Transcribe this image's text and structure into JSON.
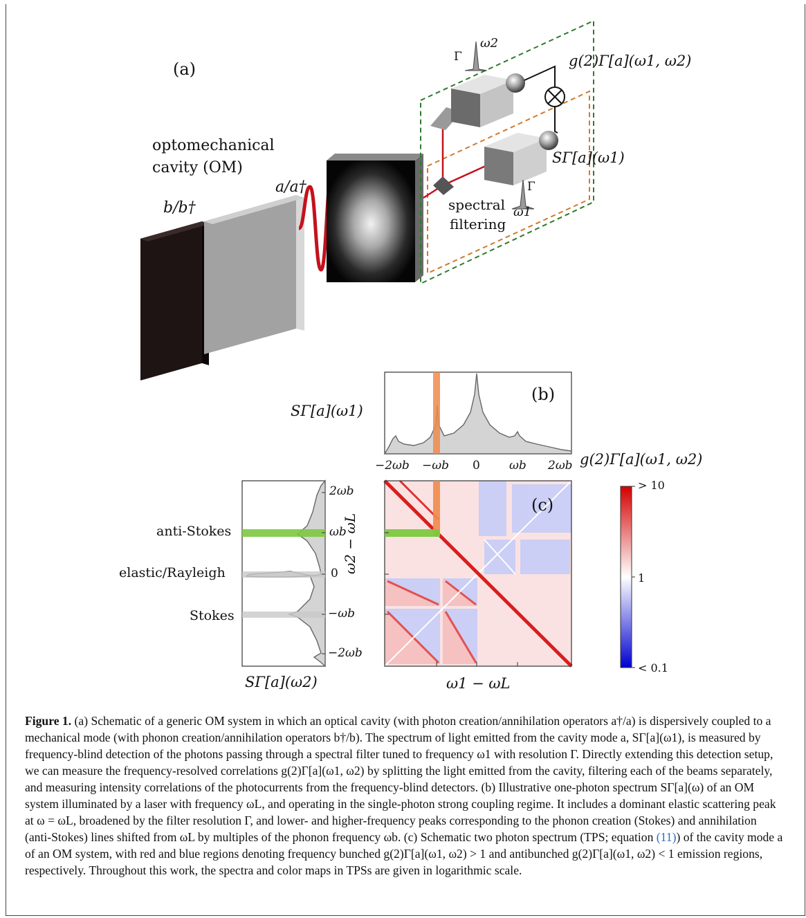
{
  "figure": {
    "panel_a": {
      "label": "(a)",
      "cavity_label_line1": "optomechanical",
      "cavity_label_line2": "cavity (OM)",
      "phonon_ops": "b/b†",
      "photon_ops": "a/a†",
      "filtering_line1": "spectral",
      "filtering_line2": "filtering",
      "gamma_symbol": "Γ",
      "omega1": "ω1",
      "omega2": "ω2",
      "g2_label": "g(2)Γ[a](ω1, ω2)",
      "s_label": "SΓ[a](ω1)"
    },
    "panel_b": {
      "label": "(b)",
      "ylabel": "SΓ[a](ω1)",
      "xticks": [
        "−2ωb",
        "−ωb",
        "0",
        "ωb",
        "2ωb"
      ],
      "g2_label": "g(2)Γ[a](ω1, ω2)"
    },
    "panel_c": {
      "label": "(c)",
      "xlabel": "ω1 − ωL",
      "ylabel": "ω2 − ωL",
      "yticks": [
        "2ωb",
        "ωb",
        "0",
        "−ωb",
        "−2ωb"
      ],
      "side_xlabel": "SΓ[a](ω2)",
      "anti_stokes": "anti-Stokes",
      "elastic": "elastic/Rayleigh",
      "stokes": "Stokes",
      "colorbar_top": "> 10",
      "colorbar_mid": "1",
      "colorbar_bottom": "< 0.1"
    },
    "colors": {
      "orange_band": "#f08a4b",
      "green_band": "#7cc940",
      "red": "#d81e1e",
      "blue": "#3a3ad8",
      "cavity_wave": "#c3121c",
      "spring": "#7a7ae0"
    }
  },
  "caption": {
    "title": "Figure 1.",
    "p1": "(a) Schematic of a generic OM system in which an optical cavity (with photon creation/annihilation operators a†/a) is dispersively coupled to a mechanical mode (with phonon creation/annihilation operators b†/b). The spectrum of light emitted from the cavity mode a, SΓ[a](ω1), is measured by frequency-blind detection of the photons passing through a spectral filter tuned to frequency ω1 with resolution Γ. Directly extending this detection setup, we can measure the frequency-resolved correlations g(2)Γ[a](ω1, ω2) by splitting the light emitted from the cavity, filtering each of the beams separately, and measuring intensity correlations of the photocurrents from the frequency-blind detectors. (b) Illustrative one-photon spectrum SΓ[a](ω) of an OM system illuminated by a laser with frequency ωL, and operating in the single-photon strong coupling regime. It includes a dominant elastic scattering peak at ω = ωL, broadened by the filter resolution Γ, and lower- and higher-frequency peaks corresponding to the phonon creation (Stokes) and annihilation (anti-Stokes) lines shifted from ωL by multiples of the phonon frequency ωb. (c) Schematic two photon spectrum (TPS; equation ",
    "eq_ref": "(11)",
    "p2": ") of the cavity mode a of an OM system, with red and blue regions denoting frequency bunched g(2)Γ[a](ω1, ω2) > 1 and antibunched g(2)Γ[a](ω1, ω2) < 1 emission regions, respectively. Throughout this work, the spectra and color maps in TPSs are given in logarithmic scale."
  }
}
